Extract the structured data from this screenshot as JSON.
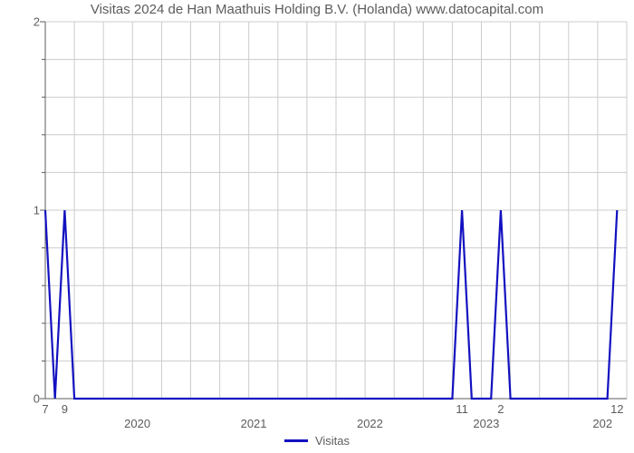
{
  "chart": {
    "type": "line",
    "title": "Visitas 2024 de Han Maathuis Holding B.V. (Holanda) www.datocapital.com",
    "title_fontsize": 15,
    "title_color": "#5c5c5c",
    "background_color": "#ffffff",
    "axis_line_color": "#5c5c5c",
    "grid_color": "#cccccc",
    "line_color": "#1311c0",
    "line_width": 2.2,
    "x_axis": {
      "min": 0,
      "max": 60,
      "year_labels": [
        {
          "pos": 9.5,
          "text": "2020"
        },
        {
          "pos": 21.5,
          "text": "2021"
        },
        {
          "pos": 33.5,
          "text": "2022"
        },
        {
          "pos": 45.5,
          "text": "2023"
        },
        {
          "pos": 57.5,
          "text": "202"
        }
      ],
      "data_labels": [
        {
          "pos": 0,
          "text": "7"
        },
        {
          "pos": 2,
          "text": "9"
        },
        {
          "pos": 43,
          "text": "11"
        },
        {
          "pos": 47,
          "text": "2"
        },
        {
          "pos": 59,
          "text": "12"
        }
      ],
      "grid_step": 3
    },
    "y_axis": {
      "min": 0,
      "max": 2,
      "ticks": [
        0,
        1,
        2
      ],
      "minor_per_major": 5,
      "label_fontsize": 13,
      "label_color": "#5c5c5c"
    },
    "series": {
      "name": "Visitas",
      "points": [
        [
          0,
          1
        ],
        [
          1,
          0
        ],
        [
          2,
          1
        ],
        [
          3,
          0
        ],
        [
          42,
          0
        ],
        [
          43,
          1
        ],
        [
          44,
          0
        ],
        [
          46,
          0
        ],
        [
          47,
          1
        ],
        [
          48,
          0
        ],
        [
          58,
          0
        ],
        [
          59,
          1
        ]
      ]
    },
    "legend": {
      "label": "Visitas",
      "swatch_color": "#1311c0",
      "text_color": "#5c5c5c",
      "fontsize": 13
    }
  }
}
